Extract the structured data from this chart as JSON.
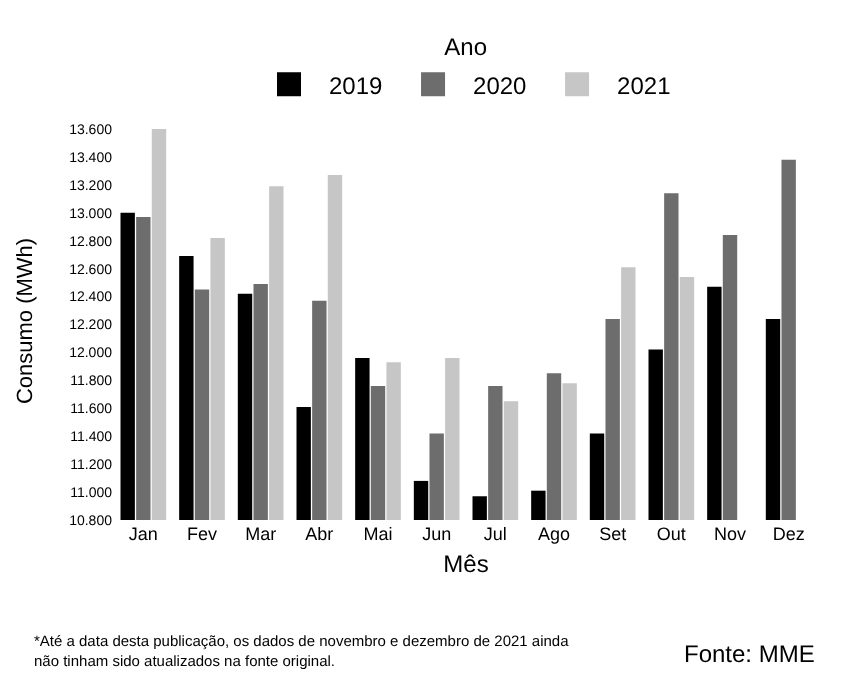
{
  "chart_data": {
    "type": "bar",
    "categories": [
      "Jan",
      "Fev",
      "Mar",
      "Abr",
      "Mai",
      "Jun",
      "Jul",
      "Ago",
      "Set",
      "Out",
      "Nov",
      "Dez"
    ],
    "series": [
      {
        "name": "2019",
        "color": "#000000",
        "values": [
          13000,
          12690,
          12420,
          11610,
          11960,
          11080,
          10970,
          11010,
          11420,
          12020,
          12470,
          12240
        ]
      },
      {
        "name": "2020",
        "color": "#6d6d6d",
        "values": [
          12970,
          12450,
          12490,
          12370,
          11760,
          11420,
          11760,
          11850,
          12240,
          13140,
          12840,
          13380
        ]
      },
      {
        "name": "2021",
        "color": "#c6c6c6",
        "values": [
          13600,
          12820,
          13190,
          13270,
          11930,
          11960,
          11650,
          11780,
          12610,
          12540,
          null,
          null
        ]
      }
    ],
    "legend_title": "Ano",
    "legend": "top",
    "xlabel": "Mês",
    "ylabel": "Consumo (MWh)",
    "ylim": [
      10800,
      13650
    ],
    "yticks": [
      {
        "value": 10800,
        "label": "10.800"
      },
      {
        "value": 11000,
        "label": "11.000"
      },
      {
        "value": 11200,
        "label": "11.200"
      },
      {
        "value": 11400,
        "label": "11.400"
      },
      {
        "value": 11600,
        "label": "11.600"
      },
      {
        "value": 11800,
        "label": "11.800"
      },
      {
        "value": 12000,
        "label": "12.000"
      },
      {
        "value": 12200,
        "label": "12.200"
      },
      {
        "value": 12400,
        "label": "12.400"
      },
      {
        "value": 12600,
        "label": "12.600"
      },
      {
        "value": 12800,
        "label": "12.800"
      },
      {
        "value": 13000,
        "label": "13.000"
      },
      {
        "value": 13200,
        "label": "13.200"
      },
      {
        "value": 13400,
        "label": "13.400"
      },
      {
        "value": 13600,
        "label": "13.600"
      }
    ],
    "annotations": [
      "*Até a data desta publicação, os dados de novembro e dezembro de 2021 ainda não tinham sido atualizados na fonte original.",
      "Fonte: MME"
    ]
  }
}
